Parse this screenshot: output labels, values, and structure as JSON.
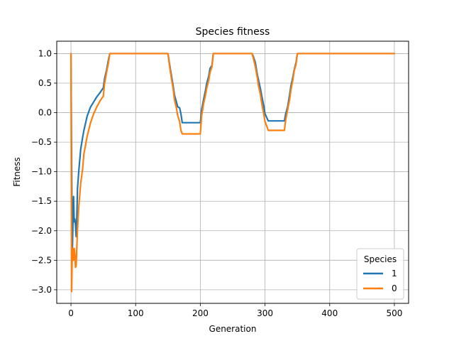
{
  "chart_data": {
    "type": "line",
    "title": "Species fitness",
    "xlabel": "Generation",
    "ylabel": "Fitness",
    "xlim": [
      -22,
      522
    ],
    "ylim": [
      -3.23,
      1.21
    ],
    "xticks": [
      0,
      100,
      200,
      300,
      400,
      500
    ],
    "xtick_labels": [
      "0",
      "100",
      "200",
      "300",
      "400",
      "500"
    ],
    "yticks": [
      -3.0,
      -2.5,
      -2.0,
      -1.5,
      -1.0,
      -0.5,
      0.0,
      0.5,
      1.0
    ],
    "ytick_labels": [
      "−3.0",
      "−2.5",
      "−2.0",
      "−1.5",
      "−1.0",
      "−0.5",
      "0.0",
      "0.5",
      "1.0"
    ],
    "grid": true,
    "legend": {
      "title": "Species",
      "position": "lower right"
    },
    "series": [
      {
        "name": "1",
        "color": "#1f77b4",
        "x": [
          0,
          1,
          2,
          3,
          4,
          5,
          6,
          7,
          8,
          9,
          10,
          12,
          15,
          18,
          20,
          25,
          30,
          35,
          40,
          45,
          50,
          52,
          55,
          58,
          60,
          80,
          100,
          120,
          140,
          150,
          152,
          155,
          158,
          160,
          163,
          165,
          168,
          170,
          172,
          175,
          180,
          185,
          190,
          195,
          200,
          202,
          205,
          208,
          210,
          213,
          215,
          218,
          220,
          225,
          240,
          260,
          280,
          282,
          285,
          288,
          290,
          293,
          295,
          298,
          300,
          305,
          310,
          315,
          320,
          325,
          330,
          332,
          335,
          338,
          340,
          343,
          345,
          348,
          350,
          360,
          380,
          400,
          420,
          440,
          460,
          480,
          500
        ],
        "y": [
          1.0,
          -0.8,
          -2.4,
          -1.9,
          -1.42,
          -1.85,
          -1.8,
          -1.9,
          -2.1,
          -1.8,
          -1.3,
          -1.0,
          -0.62,
          -0.42,
          -0.3,
          -0.06,
          0.09,
          0.18,
          0.27,
          0.34,
          0.42,
          0.58,
          0.72,
          0.9,
          1.0,
          1.0,
          1.0,
          1.0,
          1.0,
          1.0,
          0.85,
          0.65,
          0.45,
          0.3,
          0.18,
          0.1,
          0.08,
          -0.02,
          -0.17,
          -0.17,
          -0.17,
          -0.17,
          -0.17,
          -0.17,
          -0.17,
          0.05,
          0.22,
          0.38,
          0.5,
          0.62,
          0.75,
          0.8,
          1.0,
          1.0,
          1.0,
          1.0,
          1.0,
          0.95,
          0.85,
          0.65,
          0.55,
          0.4,
          0.28,
          0.12,
          -0.02,
          -0.14,
          -0.14,
          -0.14,
          -0.14,
          -0.14,
          -0.14,
          -0.02,
          0.1,
          0.3,
          0.45,
          0.6,
          0.72,
          0.85,
          1.0,
          1.0,
          1.0,
          1.0,
          1.0,
          1.0,
          1.0,
          1.0,
          1.0
        ]
      },
      {
        "name": "0",
        "color": "#ff7f0e",
        "x": [
          0,
          1,
          2,
          3,
          4,
          5,
          6,
          7,
          8,
          9,
          10,
          12,
          15,
          18,
          20,
          25,
          30,
          35,
          40,
          45,
          50,
          52,
          55,
          58,
          60,
          80,
          100,
          120,
          140,
          150,
          152,
          155,
          158,
          160,
          163,
          165,
          168,
          170,
          172,
          175,
          180,
          185,
          190,
          195,
          200,
          202,
          205,
          208,
          210,
          213,
          215,
          218,
          220,
          225,
          240,
          260,
          280,
          282,
          285,
          288,
          290,
          293,
          295,
          298,
          300,
          305,
          310,
          315,
          320,
          325,
          330,
          332,
          335,
          338,
          340,
          343,
          345,
          348,
          350,
          360,
          380,
          400,
          420,
          440,
          460,
          480,
          500
        ],
        "y": [
          1.0,
          -3.03,
          -2.4,
          -2.3,
          -2.5,
          -2.3,
          -2.4,
          -2.62,
          -2.6,
          -2.3,
          -2.0,
          -1.6,
          -1.2,
          -0.95,
          -0.7,
          -0.4,
          -0.18,
          -0.02,
          0.1,
          0.2,
          0.28,
          0.5,
          0.68,
          0.85,
          1.0,
          1.0,
          1.0,
          1.0,
          1.0,
          1.0,
          0.82,
          0.6,
          0.4,
          0.22,
          0.08,
          -0.05,
          -0.15,
          -0.3,
          -0.36,
          -0.36,
          -0.36,
          -0.36,
          -0.36,
          -0.36,
          -0.36,
          -0.05,
          0.15,
          0.3,
          0.42,
          0.55,
          0.68,
          0.78,
          1.0,
          1.0,
          1.0,
          1.0,
          1.0,
          0.92,
          0.78,
          0.6,
          0.45,
          0.3,
          0.15,
          -0.02,
          -0.15,
          -0.3,
          -0.3,
          -0.3,
          -0.3,
          -0.3,
          -0.3,
          -0.12,
          0.05,
          0.22,
          0.38,
          0.55,
          0.7,
          0.82,
          1.0,
          1.0,
          1.0,
          1.0,
          1.0,
          1.0,
          1.0,
          1.0,
          1.0
        ]
      }
    ]
  }
}
